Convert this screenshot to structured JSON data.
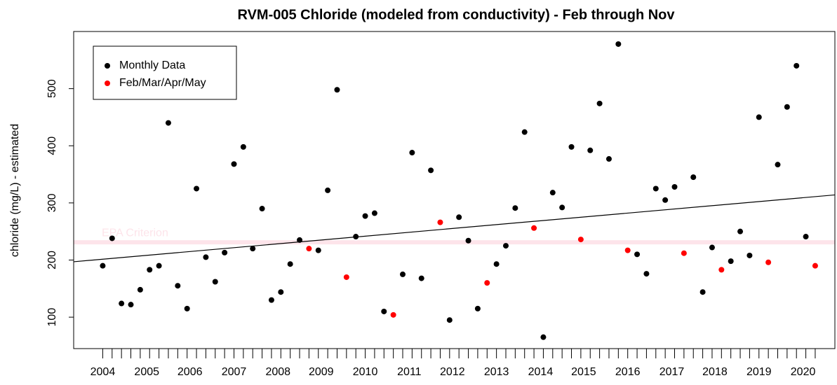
{
  "chart_data": {
    "type": "scatter",
    "title": "RVM-005 Chloride (modeled from conductivity) - Feb through Nov",
    "y_label": "chloride (mg/L) - estimated",
    "legend": "top-left",
    "series": [
      {
        "name": "Monthly Data",
        "color": "#000000",
        "x": [
          1,
          2,
          3,
          4,
          5,
          6,
          7,
          8,
          9,
          10,
          11,
          12,
          13,
          14,
          15,
          16,
          17,
          18,
          19,
          20,
          21,
          22,
          24,
          25,
          26,
          28,
          29,
          30,
          31,
          33,
          34,
          35,
          36,
          38,
          39,
          40,
          41,
          43,
          44,
          45,
          46,
          48,
          49,
          50,
          51,
          53,
          54,
          55,
          56,
          58,
          59,
          60,
          61,
          62,
          64,
          65,
          66,
          68,
          69,
          70,
          71,
          73,
          74,
          75,
          76
        ],
        "values": [
          190,
          238,
          124,
          122,
          148,
          183,
          190,
          440,
          155,
          115,
          325,
          205,
          162,
          213,
          368,
          398,
          220,
          290,
          130,
          144,
          193,
          235,
          217,
          322,
          498,
          241,
          277,
          282,
          110,
          175,
          388,
          168,
          357,
          95,
          275,
          234,
          115,
          193,
          225,
          291,
          424,
          65,
          318,
          292,
          398,
          392,
          474,
          377,
          578,
          210,
          176,
          325,
          305,
          328,
          345,
          144,
          222,
          198,
          250,
          208,
          450,
          367,
          468,
          540,
          241
        ]
      },
      {
        "name": "Feb/Mar/Apr/May",
        "color": "#ff0000",
        "x": [
          23,
          27,
          32,
          37,
          42,
          47,
          52,
          57,
          63,
          67,
          72,
          77
        ],
        "values": [
          220,
          170,
          104,
          266,
          160,
          256,
          236,
          217,
          212,
          183,
          196,
          190
        ]
      }
    ],
    "trend": [
      197,
      314
    ],
    "epa_criterion": {
      "label": "EPA Criterion",
      "value": 231,
      "color": "#fde4ea"
    },
    "xlim": [
      -2.1,
      79.1
    ],
    "xticks": [
      {
        "value": 1,
        "label": "2004"
      },
      {
        "value": 5.7,
        "label": "2005"
      },
      {
        "value": 10.3,
        "label": "2006"
      },
      {
        "value": 15,
        "label": "2007"
      },
      {
        "value": 19.7,
        "label": "2008"
      },
      {
        "value": 24.3,
        "label": "2009"
      },
      {
        "value": 29,
        "label": "2010"
      },
      {
        "value": 33.7,
        "label": "2011"
      },
      {
        "value": 38.3,
        "label": "2012"
      },
      {
        "value": 43,
        "label": "2013"
      },
      {
        "value": 47.7,
        "label": "2014"
      },
      {
        "value": 52.3,
        "label": "2015"
      },
      {
        "value": 57,
        "label": "2016"
      },
      {
        "value": 61.7,
        "label": "2017"
      },
      {
        "value": 66.3,
        "label": "2018"
      },
      {
        "value": 71,
        "label": "2019"
      },
      {
        "value": 75.7,
        "label": "2020"
      }
    ],
    "ylim": [
      45,
      600
    ],
    "yticks": [
      100,
      200,
      300,
      400,
      500
    ]
  }
}
